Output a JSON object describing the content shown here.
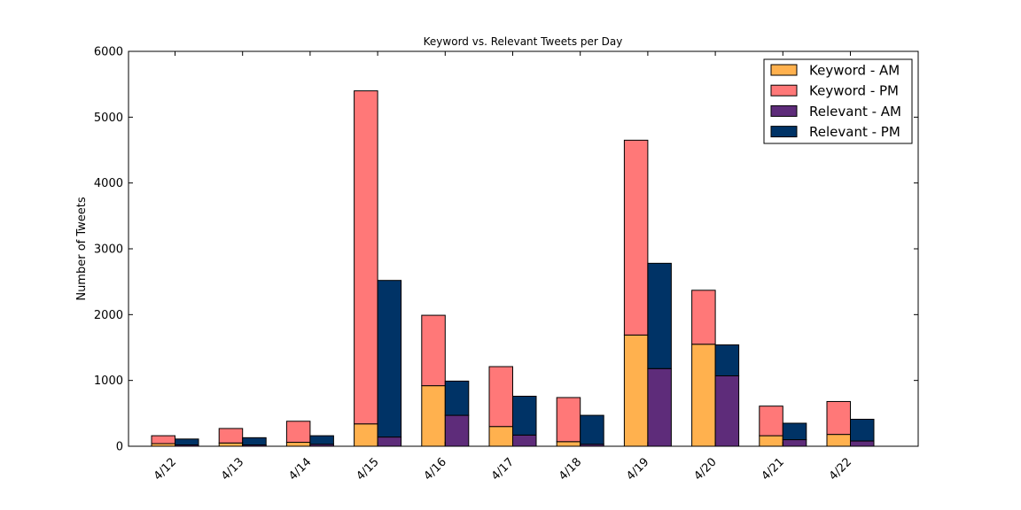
{
  "chart_data": {
    "type": "bar",
    "title": "Keyword vs. Relevant Tweets per Day",
    "xlabel": "",
    "ylabel": "Number of Tweets",
    "ylim": [
      0,
      6000
    ],
    "yticks": [
      0,
      1000,
      2000,
      3000,
      4000,
      5000,
      6000
    ],
    "categories": [
      "4/12",
      "4/13",
      "4/14",
      "4/15",
      "4/16",
      "4/17",
      "4/18",
      "4/19",
      "4/20",
      "4/21",
      "4/22"
    ],
    "stacks": [
      {
        "group": "Keyword",
        "series": [
          {
            "name": "Keyword - AM",
            "color": "#ffb14e",
            "values": [
              40,
              50,
              60,
              340,
              920,
              300,
              70,
              1690,
              1550,
              160,
              180
            ]
          },
          {
            "name": "Keyword - PM",
            "color": "#ff7878",
            "values": [
              120,
              220,
              320,
              5060,
              1070,
              910,
              670,
              2960,
              820,
              450,
              500
            ]
          }
        ]
      },
      {
        "group": "Relevant",
        "series": [
          {
            "name": "Relevant - AM",
            "color": "#5e2c7a",
            "values": [
              20,
              20,
              30,
              140,
              470,
              170,
              30,
              1180,
              1070,
              100,
              80
            ]
          },
          {
            "name": "Relevant - PM",
            "color": "#003366",
            "values": [
              90,
              110,
              130,
              2380,
              520,
              590,
              440,
              1600,
              470,
              250,
              330
            ]
          }
        ]
      }
    ],
    "legend_position": "top-right",
    "grid": false
  }
}
